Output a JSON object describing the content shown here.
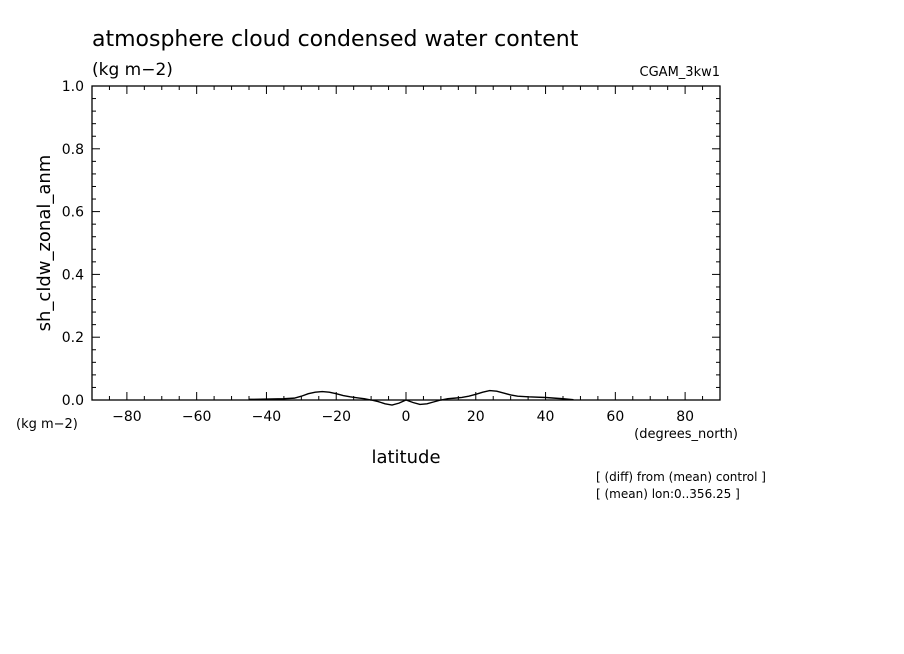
{
  "chart_data": {
    "type": "line",
    "title": "atmosphere cloud condensed water content",
    "subtitle": "(kg m−2)",
    "experiment_label": "CGAM_3kw1",
    "xlabel": "latitude",
    "x_units": "(degrees_north)",
    "ylabel": "sh_cldw_zonal_anm",
    "y_units": "(kg m−2)",
    "xlim": [
      -90,
      90
    ],
    "ylim": [
      0.0,
      1.0
    ],
    "x_ticks": [
      -80,
      -60,
      -40,
      -20,
      0,
      20,
      40,
      60,
      80
    ],
    "x_tick_labels": [
      "−80",
      "−60",
      "−40",
      "−20",
      "0",
      "20",
      "40",
      "60",
      "80"
    ],
    "y_ticks": [
      0.0,
      0.2,
      0.4,
      0.6,
      0.8,
      1.0
    ],
    "y_tick_labels": [
      "0.0",
      "0.2",
      "0.4",
      "0.6",
      "0.8",
      "1.0"
    ],
    "grid": false,
    "series": [
      {
        "x": [
          -45,
          -40,
          -35,
          -32,
          -30,
          -28,
          -26,
          -24,
          -22,
          -20,
          -18,
          -16,
          -14,
          -12,
          -10,
          -8,
          -6,
          -4,
          -2,
          0,
          2,
          4,
          6,
          8,
          10,
          12,
          14,
          16,
          18,
          20,
          22,
          24,
          26,
          28,
          30,
          32,
          35,
          40,
          45,
          48
        ],
        "values": [
          0.002,
          0.003,
          0.004,
          0.006,
          0.012,
          0.02,
          0.025,
          0.027,
          0.025,
          0.02,
          0.014,
          0.01,
          0.007,
          0.004,
          0.0,
          -0.005,
          -0.012,
          -0.016,
          -0.01,
          0.0,
          -0.008,
          -0.014,
          -0.012,
          -0.006,
          0.0,
          0.004,
          0.006,
          0.008,
          0.012,
          0.018,
          0.025,
          0.03,
          0.028,
          0.022,
          0.016,
          0.012,
          0.01,
          0.008,
          0.004,
          0.001
        ]
      }
    ],
    "notes": [
      "[ (diff) from (mean) control ]",
      "[ (mean) lon:0..356.25 ]"
    ]
  }
}
